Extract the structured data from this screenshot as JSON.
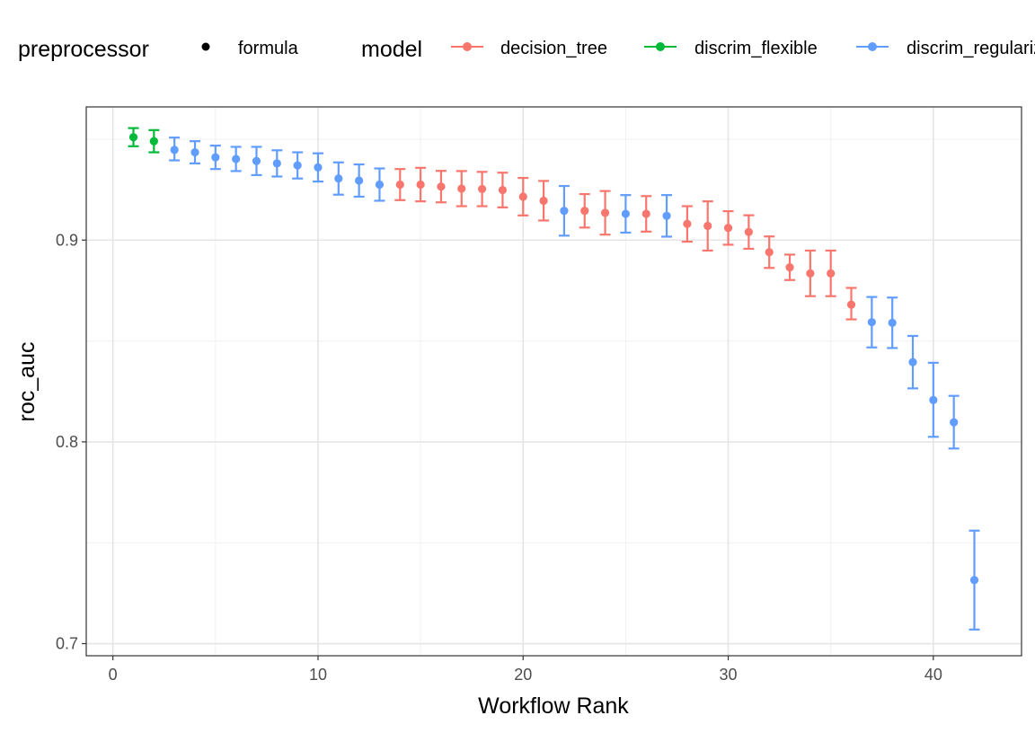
{
  "chart_data": {
    "type": "scatter",
    "xlabel": "Workflow Rank",
    "ylabel": "roc_auc",
    "xlim": [
      -1.3,
      44.3
    ],
    "ylim": [
      0.694,
      0.966
    ],
    "x_ticks": [
      0,
      10,
      20,
      30,
      40
    ],
    "y_ticks": [
      0.7,
      0.8,
      0.9
    ],
    "x_tick_labels": [
      "0",
      "10",
      "20",
      "30",
      "40"
    ],
    "y_tick_labels": [
      "0.7",
      "0.8",
      "0.9"
    ],
    "grid": true,
    "legend": {
      "placement": "top",
      "preprocessor_title": "preprocessor",
      "preprocessor_items": [
        {
          "label": "formula"
        }
      ],
      "model_title": "model",
      "model_items": [
        {
          "label": "decision_tree",
          "color": "#F8766D"
        },
        {
          "label": "discrim_flexible",
          "color": "#00BA38"
        },
        {
          "label": "discrim_regularized",
          "color": "#619CFF"
        }
      ]
    },
    "series": [
      {
        "name": "decision_tree",
        "color": "#F8766D",
        "points": [
          {
            "x": 14,
            "y": 0.9275,
            "lo": 0.9198,
            "hi": 0.9352
          },
          {
            "x": 15,
            "y": 0.9275,
            "lo": 0.9192,
            "hi": 0.9358
          },
          {
            "x": 16,
            "y": 0.9265,
            "lo": 0.9187,
            "hi": 0.9343
          },
          {
            "x": 17,
            "y": 0.9255,
            "lo": 0.9168,
            "hi": 0.9342
          },
          {
            "x": 18,
            "y": 0.9253,
            "lo": 0.9168,
            "hi": 0.9338
          },
          {
            "x": 19,
            "y": 0.9248,
            "lo": 0.9162,
            "hi": 0.9334
          },
          {
            "x": 20,
            "y": 0.9215,
            "lo": 0.9122,
            "hi": 0.9308
          },
          {
            "x": 21,
            "y": 0.9195,
            "lo": 0.9097,
            "hi": 0.9293
          },
          {
            "x": 23,
            "y": 0.9145,
            "lo": 0.9062,
            "hi": 0.9228
          },
          {
            "x": 24,
            "y": 0.9135,
            "lo": 0.9027,
            "hi": 0.9243
          },
          {
            "x": 26,
            "y": 0.913,
            "lo": 0.9042,
            "hi": 0.9218
          },
          {
            "x": 28,
            "y": 0.908,
            "lo": 0.8992,
            "hi": 0.9168
          },
          {
            "x": 29,
            "y": 0.907,
            "lo": 0.8948,
            "hi": 0.9192
          },
          {
            "x": 30,
            "y": 0.906,
            "lo": 0.8977,
            "hi": 0.9143
          },
          {
            "x": 31,
            "y": 0.904,
            "lo": 0.8957,
            "hi": 0.9123
          },
          {
            "x": 32,
            "y": 0.894,
            "lo": 0.8862,
            "hi": 0.9018
          },
          {
            "x": 33,
            "y": 0.8865,
            "lo": 0.8802,
            "hi": 0.8928
          },
          {
            "x": 34,
            "y": 0.8835,
            "lo": 0.8722,
            "hi": 0.8948
          },
          {
            "x": 35,
            "y": 0.8835,
            "lo": 0.8722,
            "hi": 0.8948
          },
          {
            "x": 36,
            "y": 0.868,
            "lo": 0.8607,
            "hi": 0.8763
          }
        ]
      },
      {
        "name": "discrim_flexible",
        "color": "#00BA38",
        "points": [
          {
            "x": 1,
            "y": 0.951,
            "lo": 0.9465,
            "hi": 0.9555
          },
          {
            "x": 2,
            "y": 0.949,
            "lo": 0.9435,
            "hi": 0.9545
          }
        ]
      },
      {
        "name": "discrim_regularized",
        "color": "#619CFF",
        "points": [
          {
            "x": 3,
            "y": 0.9447,
            "lo": 0.9395,
            "hi": 0.9508
          },
          {
            "x": 4,
            "y": 0.9435,
            "lo": 0.938,
            "hi": 0.949
          },
          {
            "x": 5,
            "y": 0.941,
            "lo": 0.9352,
            "hi": 0.9468
          },
          {
            "x": 6,
            "y": 0.9402,
            "lo": 0.9342,
            "hi": 0.9462
          },
          {
            "x": 7,
            "y": 0.9392,
            "lo": 0.9322,
            "hi": 0.9462
          },
          {
            "x": 8,
            "y": 0.938,
            "lo": 0.9315,
            "hi": 0.9445
          },
          {
            "x": 9,
            "y": 0.937,
            "lo": 0.9305,
            "hi": 0.9435
          },
          {
            "x": 10,
            "y": 0.936,
            "lo": 0.929,
            "hi": 0.943
          },
          {
            "x": 11,
            "y": 0.9305,
            "lo": 0.9225,
            "hi": 0.9385
          },
          {
            "x": 12,
            "y": 0.9295,
            "lo": 0.9215,
            "hi": 0.9375
          },
          {
            "x": 13,
            "y": 0.9275,
            "lo": 0.9195,
            "hi": 0.9355
          },
          {
            "x": 22,
            "y": 0.9145,
            "lo": 0.9022,
            "hi": 0.9268
          },
          {
            "x": 25,
            "y": 0.913,
            "lo": 0.9037,
            "hi": 0.9223
          },
          {
            "x": 27,
            "y": 0.912,
            "lo": 0.9017,
            "hi": 0.9223
          },
          {
            "x": 37,
            "y": 0.8593,
            "lo": 0.8468,
            "hi": 0.8718
          },
          {
            "x": 38,
            "y": 0.859,
            "lo": 0.8465,
            "hi": 0.8715
          },
          {
            "x": 39,
            "y": 0.8395,
            "lo": 0.8265,
            "hi": 0.8525
          },
          {
            "x": 40,
            "y": 0.8207,
            "lo": 0.8025,
            "hi": 0.8392
          },
          {
            "x": 41,
            "y": 0.8097,
            "lo": 0.7967,
            "hi": 0.8228
          },
          {
            "x": 42,
            "y": 0.7315,
            "lo": 0.707,
            "hi": 0.756
          }
        ]
      }
    ]
  }
}
